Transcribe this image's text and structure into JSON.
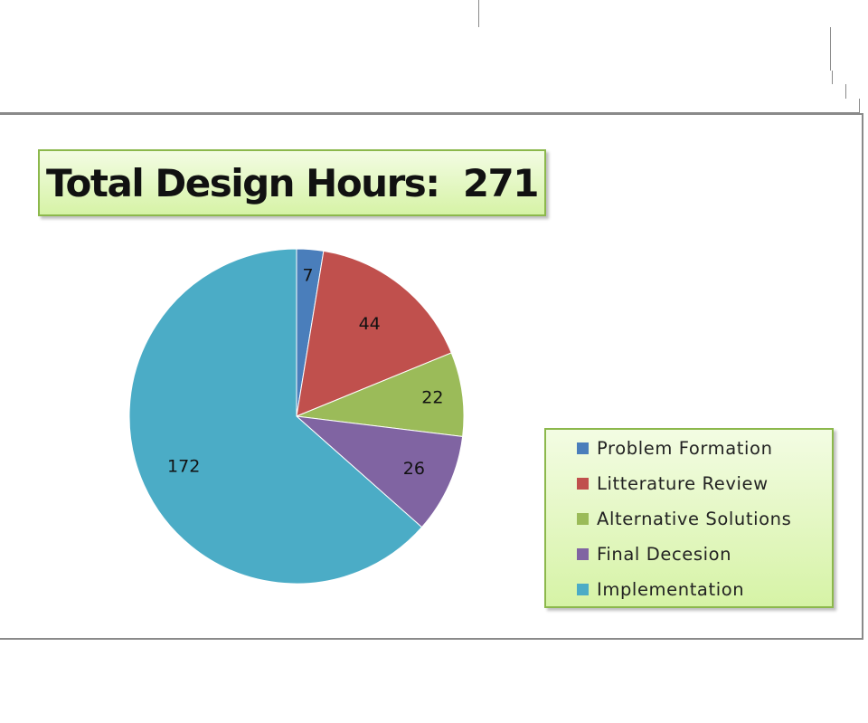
{
  "chart_data": {
    "type": "pie",
    "title": "Total Design Hours:  271",
    "categories": [
      "Problem Formation",
      "Litterature Review",
      "Alternative Solutions",
      "Final Decesion",
      "Implementation"
    ],
    "values": [
      7,
      44,
      22,
      26,
      172
    ],
    "colors": [
      "#4a7ebb",
      "#c0504d",
      "#9bbb59",
      "#8064a2",
      "#4bacc6"
    ],
    "legend_position": "bottom-right",
    "data_labels": true
  }
}
